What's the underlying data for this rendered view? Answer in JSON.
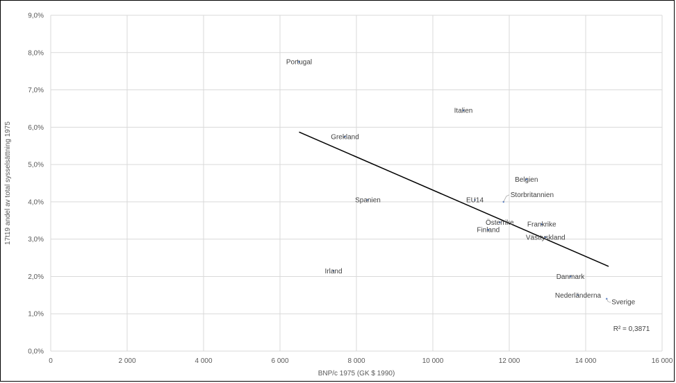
{
  "chart_data": {
    "type": "scatter",
    "title": "",
    "xlabel": "BNP/c 1975 (GK $ 1990)",
    "ylabel": "17t19 andel av total sysselsättning 1975",
    "xlim": [
      0,
      16000
    ],
    "ylim": [
      0,
      9
    ],
    "x_ticks": [
      0,
      2000,
      4000,
      6000,
      8000,
      10000,
      12000,
      14000,
      16000
    ],
    "x_tick_labels": [
      "0",
      "2 000",
      "4 000",
      "6 000",
      "8 000",
      "10 000",
      "12 000",
      "14 000",
      "16 000"
    ],
    "y_ticks": [
      0,
      1,
      2,
      3,
      4,
      5,
      6,
      7,
      8,
      9
    ],
    "y_tick_labels": [
      "0,0%",
      "1,0%",
      "2,0%",
      "3,0%",
      "4,0%",
      "5,0%",
      "6,0%",
      "7,0%",
      "8,0%",
      "9,0%"
    ],
    "grid": true,
    "legend": "none",
    "point_color": "#4472c4",
    "trend_color": "#000000",
    "points": [
      {
        "label": "Portugal",
        "x": 6500,
        "y": 7.75
      },
      {
        "label": "Italien",
        "x": 10800,
        "y": 6.45
      },
      {
        "label": "Grekland",
        "x": 7700,
        "y": 5.75
      },
      {
        "label": "Belgien",
        "x": 12450,
        "y": 4.6
      },
      {
        "label": "Storbritannien",
        "x": 11850,
        "y": 4.0
      },
      {
        "label": "EU14",
        "x": 11100,
        "y": 4.05
      },
      {
        "label": "Spanien",
        "x": 8300,
        "y": 4.05
      },
      {
        "label": "Österrike",
        "x": 11750,
        "y": 3.45
      },
      {
        "label": "Frankrike",
        "x": 12850,
        "y": 3.4
      },
      {
        "label": "Finland",
        "x": 11450,
        "y": 3.25
      },
      {
        "label": "Västtyskland",
        "x": 12950,
        "y": 3.05
      },
      {
        "label": "Irland",
        "x": 7400,
        "y": 2.15
      },
      {
        "label": "Danmark",
        "x": 13600,
        "y": 2.0
      },
      {
        "label": "Nederländerna",
        "x": 13800,
        "y": 1.5
      },
      {
        "label": "Sverige",
        "x": 14550,
        "y": 1.4
      }
    ],
    "trendline": {
      "x": [
        6500,
        14600
      ],
      "y": [
        5.87,
        2.27
      ]
    },
    "r2_label": "R² = 0,3871"
  }
}
